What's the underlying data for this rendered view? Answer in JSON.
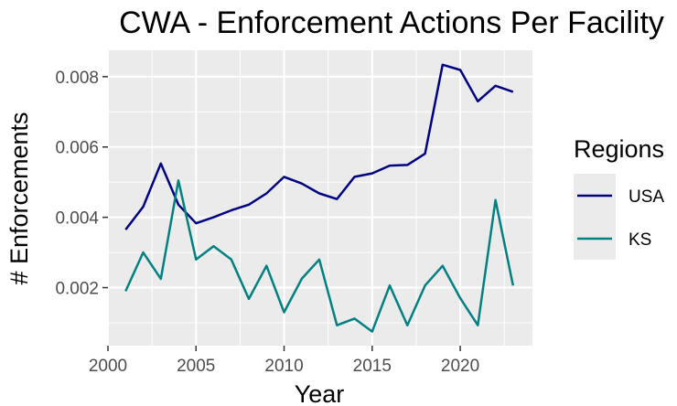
{
  "chart_data": {
    "type": "line",
    "title": "CWA - Enforcement Actions Per Facility",
    "xlabel": "Year",
    "ylabel": "# Enforcements",
    "xlim": [
      2000,
      2024.1
    ],
    "ylim": [
      0.00035,
      0.00875
    ],
    "x_ticks": [
      2000,
      2005,
      2010,
      2015,
      2020
    ],
    "x_tick_labels": [
      "2000",
      "2005",
      "2010",
      "2015",
      "2020"
    ],
    "y_ticks": [
      0.002,
      0.004,
      0.006,
      0.008
    ],
    "y_tick_labels": [
      "0.002",
      "0.004",
      "0.006",
      "0.008"
    ],
    "grid": true,
    "legend": {
      "title": "Regions",
      "position": "right"
    },
    "x": [
      2001,
      2002,
      2003,
      2004,
      2005,
      2006,
      2007,
      2008,
      2009,
      2010,
      2011,
      2012,
      2013,
      2014,
      2015,
      2016,
      2017,
      2018,
      2019,
      2020,
      2021,
      2022,
      2023
    ],
    "series": [
      {
        "name": "USA",
        "color": "#000080",
        "values": [
          0.00365,
          0.0043,
          0.00553,
          0.00436,
          0.00383,
          0.004,
          0.0042,
          0.00436,
          0.00468,
          0.00515,
          0.00496,
          0.00468,
          0.00452,
          0.00515,
          0.00525,
          0.00547,
          0.00549,
          0.00581,
          0.00834,
          0.00819,
          0.0073,
          0.00774,
          0.00757
        ]
      },
      {
        "name": "KS",
        "color": "#008080",
        "values": [
          0.0019,
          0.003,
          0.00225,
          0.00505,
          0.0028,
          0.00318,
          0.0028,
          0.00168,
          0.00262,
          0.0013,
          0.00225,
          0.0028,
          0.00093,
          0.00112,
          0.00075,
          0.00206,
          0.00093,
          0.00206,
          0.00262,
          0.0017,
          0.00093,
          0.00449,
          0.00206
        ]
      }
    ]
  }
}
